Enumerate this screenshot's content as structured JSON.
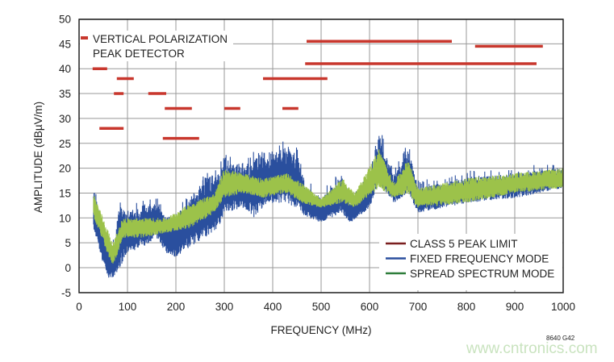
{
  "chart_data": {
    "type": "line",
    "title": "",
    "xlabel": "FREQUENCY (MHz)",
    "ylabel": "AMPLITUDE (dBµV/m)",
    "xlim": [
      0,
      1000
    ],
    "ylim": [
      -5,
      50
    ],
    "xticks": [
      "0",
      "100",
      "200",
      "300",
      "400",
      "500",
      "600",
      "700",
      "800",
      "900",
      "1000"
    ],
    "yticks": [
      "-5",
      "0",
      "5",
      "10",
      "15",
      "20",
      "25",
      "30",
      "35",
      "40",
      "45",
      "50"
    ],
    "grid": true,
    "legend_placement": "bottom-right",
    "annotation": {
      "lines": [
        "VERTICAL POLARIZATION",
        "PEAK DETECTOR"
      ]
    },
    "figure_code": "8640 G42",
    "watermark": "www.cntronics.com",
    "colors": {
      "limit": "#c8372d",
      "fixed": "#2a4f9e",
      "spread": "#9cc24a",
      "legend_limit": "#7a1f1f",
      "legend_spread": "#2e7d3a",
      "watermark": "#c9e3bf"
    },
    "legend": [
      {
        "name": "CLASS 5 PEAK LIMIT",
        "color": "#7a1f1f"
      },
      {
        "name": "FIXED FREQUENCY MODE",
        "color": "#2a4f9e"
      },
      {
        "name": "SPREAD SPECTRUM MODE",
        "color": "#2e7d3a"
      }
    ],
    "limit_segments": [
      {
        "f1": 28,
        "f2": 58,
        "level": 40
      },
      {
        "f1": 78,
        "f2": 113,
        "level": 38
      },
      {
        "f1": 72,
        "f2": 92,
        "level": 35
      },
      {
        "f1": 143,
        "f2": 180,
        "level": 35
      },
      {
        "f1": 177,
        "f2": 233,
        "level": 32
      },
      {
        "f1": 300,
        "f2": 333,
        "level": 32
      },
      {
        "f1": 420,
        "f2": 453,
        "level": 32
      },
      {
        "f1": 42,
        "f2": 92,
        "level": 28
      },
      {
        "f1": 173,
        "f2": 248,
        "level": 26
      },
      {
        "f1": 380,
        "f2": 513,
        "level": 38
      },
      {
        "f1": 470,
        "f2": 770,
        "level": 45.5
      },
      {
        "f1": 467,
        "f2": 945,
        "level": 41
      },
      {
        "f1": 818,
        "f2": 958,
        "level": 44.5
      }
    ],
    "series": [
      {
        "name": "FIXED FREQUENCY MODE",
        "envelope_freq_low_high": [
          [
            30,
            8,
            16
          ],
          [
            45,
            2,
            10
          ],
          [
            60,
            -2,
            4
          ],
          [
            75,
            -2,
            5
          ],
          [
            80,
            -1,
            13
          ],
          [
            100,
            3,
            11
          ],
          [
            130,
            4,
            12
          ],
          [
            160,
            6,
            13
          ],
          [
            180,
            3,
            10
          ],
          [
            200,
            2,
            11
          ],
          [
            230,
            4,
            14
          ],
          [
            260,
            6,
            18
          ],
          [
            290,
            8,
            19
          ],
          [
            300,
            11,
            22
          ],
          [
            340,
            12,
            20
          ],
          [
            360,
            10,
            22
          ],
          [
            390,
            13,
            22
          ],
          [
            420,
            13,
            24
          ],
          [
            450,
            12,
            23
          ],
          [
            470,
            10,
            16
          ],
          [
            500,
            9,
            14
          ],
          [
            540,
            11,
            18
          ],
          [
            560,
            9,
            13
          ],
          [
            600,
            12,
            18
          ],
          [
            620,
            17,
            27
          ],
          [
            650,
            13,
            18
          ],
          [
            680,
            15,
            24
          ],
          [
            700,
            11,
            16
          ],
          [
            800,
            13,
            18
          ],
          [
            900,
            14,
            19
          ],
          [
            1000,
            16,
            20
          ]
        ]
      },
      {
        "name": "SPREAD SPECTRUM MODE",
        "envelope_freq_low_high": [
          [
            30,
            10,
            15
          ],
          [
            50,
            5,
            10
          ],
          [
            70,
            0,
            5
          ],
          [
            90,
            6,
            10
          ],
          [
            130,
            6,
            10
          ],
          [
            180,
            7,
            10
          ],
          [
            230,
            8,
            13
          ],
          [
            280,
            11,
            15
          ],
          [
            300,
            14,
            20
          ],
          [
            340,
            15,
            19
          ],
          [
            380,
            14,
            18
          ],
          [
            430,
            15,
            19
          ],
          [
            460,
            13,
            17
          ],
          [
            500,
            12,
            14
          ],
          [
            545,
            13,
            18
          ],
          [
            570,
            12,
            15
          ],
          [
            620,
            16,
            24
          ],
          [
            650,
            14,
            17
          ],
          [
            680,
            15,
            22
          ],
          [
            700,
            12,
            16
          ],
          [
            800,
            13,
            18
          ],
          [
            900,
            15,
            19
          ],
          [
            1000,
            16,
            20
          ]
        ]
      }
    ]
  }
}
